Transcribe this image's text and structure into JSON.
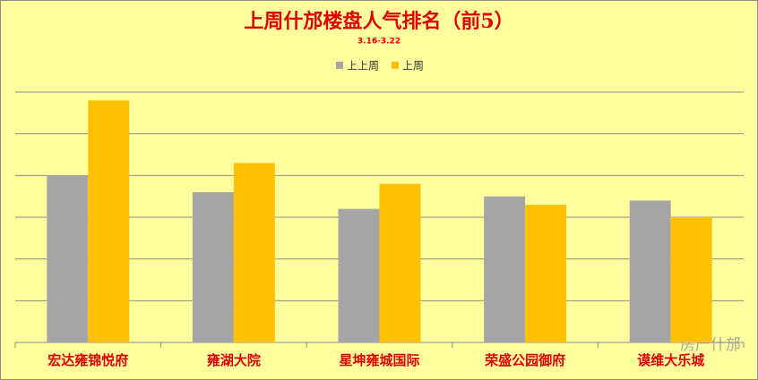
{
  "chart_data": {
    "type": "bar",
    "title": "上周什邡楼盘人气排名（前5）",
    "subtitle": "3.16-3.22",
    "categories": [
      "宏达雍锦悦府",
      "雍湖大院",
      "星坤雍城国际",
      "荣盛公园御府",
      "谟维大乐城"
    ],
    "series": [
      {
        "name": "上上周",
        "color": "#a5a5a5",
        "values": [
          4.0,
          3.6,
          3.2,
          3.5,
          3.4
        ]
      },
      {
        "name": "上周",
        "color": "#ffc000",
        "values": [
          5.8,
          4.3,
          3.8,
          3.3,
          3.0
        ]
      }
    ],
    "ylim": [
      0,
      6
    ],
    "yticks": [
      0,
      1,
      2,
      3,
      4,
      5,
      6
    ],
    "grid": true,
    "tick_labels": false,
    "legend": "top",
    "watermark": "房产什邡"
  }
}
